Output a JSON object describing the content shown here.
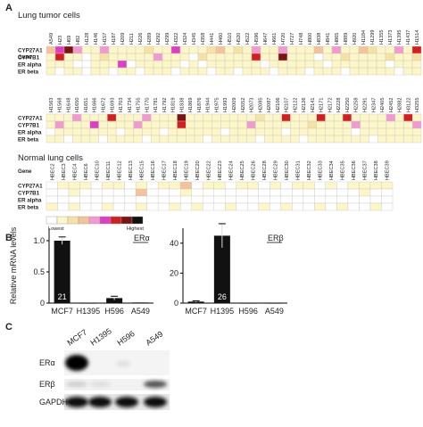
{
  "panel_a": {
    "label": "A",
    "groups": [
      {
        "title": "Lung tumor cells",
        "gene_label": "Gene",
        "cells": [
          "A549",
          "H23",
          "H69",
          "H82",
          "H128",
          "H146",
          "H157",
          "H187",
          "H209",
          "H211",
          "H226",
          "H289",
          "H292",
          "H299",
          "H322",
          "H324",
          "H345",
          "H358",
          "H441",
          "H460",
          "H510",
          "H520",
          "H522",
          "H596",
          "H647",
          "H661",
          "H720",
          "H727",
          "H748",
          "H800",
          "H838",
          "H841",
          "H865",
          "H889",
          "H920",
          "H1184",
          "H1299",
          "H1355",
          "H1373",
          "H1395",
          "H1437",
          "H1514"
        ],
        "rows": [
          {
            "gene": "CYP27A1",
            "levels": [
              3,
              5,
              7,
              4,
              1,
              1,
              4,
              1,
              1,
              1,
              1,
              2,
              1,
              1,
              5,
              1,
              1,
              1,
              2,
              3,
              1,
              2,
              1,
              4,
              1,
              1,
              4,
              1,
              1,
              1,
              3,
              1,
              4,
              1,
              1,
              3,
              2,
              1,
              1,
              4,
              1,
              6
            ]
          },
          {
            "gene": "CYP7B1",
            "levels": [
              1,
              6,
              1,
              1,
              0,
              1,
              2,
              1,
              1,
              1,
              1,
              1,
              4,
              1,
              1,
              1,
              0,
              2,
              1,
              1,
              1,
              1,
              1,
              6,
              1,
              1,
              7,
              1,
              1,
              1,
              0,
              1,
              1,
              2,
              1,
              1,
              1,
              1,
              2,
              1,
              1,
              2
            ]
          },
          {
            "gene": "ER alpha",
            "levels": [
              1,
              1,
              1,
              0,
              0,
              1,
              1,
              1,
              5,
              0,
              1,
              1,
              1,
              1,
              1,
              0,
              1,
              0,
              1,
              1,
              1,
              1,
              1,
              1,
              0,
              1,
              1,
              1,
              1,
              1,
              1,
              0,
              1,
              1,
              1,
              1,
              1,
              1,
              0,
              1,
              1,
              1
            ]
          },
          {
            "gene": "ER beta",
            "levels": [
              1,
              0,
              1,
              1,
              0,
              1,
              1,
              0,
              1,
              1,
              0,
              1,
              1,
              1,
              0,
              1,
              1,
              1,
              0,
              1,
              1,
              0,
              1,
              1,
              1,
              0,
              1,
              1,
              1,
              0,
              1,
              1,
              1,
              0,
              1,
              1,
              1,
              1,
              1,
              0,
              1,
              1
            ]
          }
        ]
      },
      {
        "cells": [
          "H1563",
          "H1568",
          "H1648",
          "H1650",
          "H1651",
          "H1666",
          "H1672",
          "H1693",
          "H1703",
          "H1734",
          "H1755",
          "H1770",
          "H1781",
          "H1792",
          "H1819",
          "H1838",
          "H1869",
          "H1876",
          "H1944",
          "H1975",
          "H1993",
          "H2009",
          "H2052",
          "H2073",
          "H2085",
          "H2087",
          "H2106",
          "H2107",
          "H2122",
          "H2126",
          "H2141",
          "H2171",
          "H2172",
          "H2228",
          "H2250",
          "H2258",
          "H2291",
          "H2347",
          "H2405",
          "H2452",
          "H2882",
          "H3122",
          "H3255"
        ],
        "rows": [
          {
            "gene": "CYP27A1",
            "levels": [
              1,
              1,
              1,
              4,
              1,
              1,
              1,
              6,
              1,
              1,
              1,
              4,
              1,
              1,
              1,
              7,
              1,
              1,
              1,
              1,
              1,
              1,
              1,
              1,
              2,
              1,
              1,
              6,
              1,
              1,
              1,
              6,
              1,
              1,
              6,
              1,
              1,
              1,
              1,
              4,
              1,
              6,
              1
            ]
          },
          {
            "gene": "CYP7B1",
            "levels": [
              1,
              4,
              1,
              1,
              1,
              5,
              1,
              1,
              1,
              1,
              4,
              1,
              1,
              1,
              1,
              6,
              1,
              1,
              1,
              1,
              1,
              1,
              1,
              4,
              1,
              1,
              1,
              1,
              1,
              1,
              2,
              1,
              1,
              1,
              1,
              4,
              1,
              1,
              1,
              1,
              1,
              1,
              4
            ]
          },
          {
            "gene": "ER alpha",
            "levels": [
              0,
              1,
              1,
              1,
              1,
              1,
              1,
              1,
              0,
              1,
              1,
              1,
              1,
              0,
              1,
              1,
              1,
              1,
              1,
              1,
              0,
              1,
              1,
              1,
              1,
              1,
              1,
              0,
              1,
              1,
              1,
              1,
              1,
              1,
              1,
              0,
              1,
              1,
              1,
              1,
              1,
              1,
              1
            ]
          },
          {
            "gene": "ER beta",
            "levels": [
              1,
              1,
              0,
              1,
              1,
              1,
              0,
              1,
              1,
              1,
              1,
              0,
              1,
              1,
              1,
              1,
              1,
              1,
              0,
              1,
              1,
              1,
              1,
              1,
              0,
              1,
              1,
              1,
              1,
              0,
              1,
              1,
              1,
              1,
              1,
              1,
              1,
              0,
              1,
              1,
              1,
              1,
              1
            ]
          }
        ]
      },
      {
        "title": "Normal lung cells",
        "gene_label": "Gene",
        "cells": [
          "HBEC2",
          "HBEC3",
          "HBEC4",
          "HBEC6",
          "HBEC10",
          "HBEC11",
          "HBEC12",
          "HBEC13",
          "HBEC15",
          "HBEC16",
          "HBEC17",
          "HBEC18",
          "HBEC19",
          "HBEC20",
          "HBEC22",
          "HBEC23",
          "HBEC24",
          "HBEC25",
          "HBEC26",
          "HBEC28",
          "HBEC29",
          "HBEC30",
          "HBEC31",
          "HBEC32",
          "HBEC33",
          "HBEC34",
          "HBEC35",
          "HBEC36",
          "HBEC37",
          "HBEC38",
          "HBEC39"
        ],
        "rows": [
          {
            "gene": "CYP27A1",
            "levels": [
              0,
              1,
              1,
              1,
              0,
              1,
              1,
              0,
              1,
              0,
              1,
              1,
              3,
              0,
              1,
              1,
              0,
              1,
              1,
              0,
              1,
              0,
              1,
              1,
              0,
              1,
              0,
              1,
              1,
              1,
              1
            ]
          },
          {
            "gene": "CYP7B1",
            "levels": [
              0,
              0,
              1,
              0,
              0,
              0,
              0,
              0,
              3,
              0,
              0,
              0,
              1,
              0,
              0,
              0,
              0,
              0,
              0,
              0,
              0,
              0,
              0,
              0,
              0,
              0,
              0,
              0,
              1,
              0,
              0
            ]
          },
          {
            "gene": "ER alpha",
            "levels": [
              0,
              0,
              0,
              0,
              0,
              0,
              0,
              0,
              0,
              0,
              0,
              0,
              0,
              0,
              0,
              0,
              0,
              0,
              0,
              0,
              0,
              0,
              0,
              0,
              0,
              0,
              0,
              0,
              0,
              0,
              0
            ]
          },
          {
            "gene": "ER beta",
            "levels": [
              1,
              0,
              1,
              0,
              0,
              1,
              0,
              0,
              1,
              0,
              0,
              1,
              0,
              1,
              0,
              0,
              1,
              0,
              0,
              1,
              0,
              1,
              0,
              0,
              1,
              0,
              1,
              0,
              0,
              1,
              0
            ]
          }
        ]
      }
    ],
    "scale": {
      "colors": [
        "#ffffff",
        "#fdf6c6",
        "#f6e3a4",
        "#f3c39a",
        "#f29ad0",
        "#de3fc2",
        "#d71e1e",
        "#7d1212",
        "#111111"
      ],
      "low": "Lowest",
      "high": "Highest"
    }
  },
  "panel_b": {
    "label": "B"
  },
  "chart_data": [
    {
      "type": "bar",
      "title": "ERα",
      "ylabel": "Relative mRNA levels",
      "categories": [
        "MCF7",
        "H1395",
        "H596",
        "A549"
      ],
      "values": [
        1.0,
        0,
        0.08,
        0.01
      ],
      "errors": [
        0.06,
        0,
        0.03,
        0
      ],
      "bar_labels": [
        "21",
        null,
        null,
        null
      ],
      "color": "#111111",
      "ylim": [
        0,
        1.2
      ],
      "yticks": [
        0,
        0.5,
        {
          "value": 1,
          "label": "1.0"
        }
      ]
    },
    {
      "type": "bar",
      "title": "ERβ",
      "categories": [
        "MCF7",
        "H1395",
        "H596",
        "A549"
      ],
      "values": [
        1,
        45,
        0,
        0
      ],
      "errors": [
        0.5,
        8,
        0,
        0
      ],
      "bar_labels": [
        null,
        "26",
        null,
        null
      ],
      "color": "#111111",
      "ylim": [
        0,
        50
      ],
      "yticks": [
        0,
        20,
        40
      ]
    }
  ],
  "panel_c": {
    "label": "C",
    "lanes": [
      "MCF7",
      "H1395",
      "H596",
      "A549"
    ],
    "proteins": [
      "ERα",
      "ERβ",
      "GAPDH"
    ]
  }
}
